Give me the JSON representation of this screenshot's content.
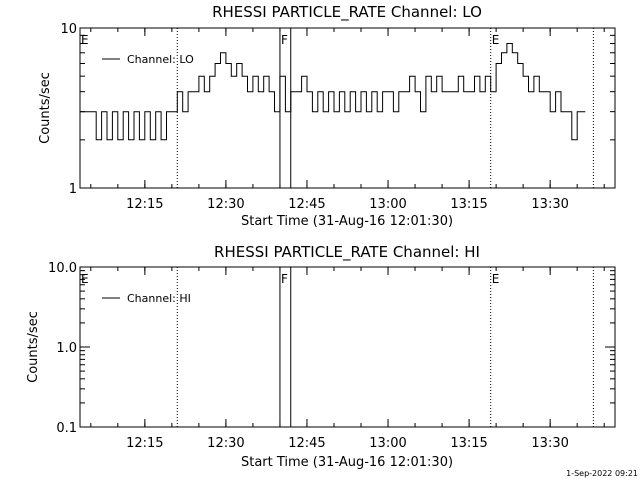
{
  "footer": "1-Sep-2022 09:21",
  "chart_data": [
    {
      "type": "line",
      "title": "RHESSI PARTICLE_RATE Channel: LO",
      "xlabel": "Start Time (31-Aug-16 12:01:30)",
      "ylabel": "Counts/sec",
      "yscale": "log",
      "ylim": [
        1,
        10
      ],
      "yticks": [
        1,
        10
      ],
      "ytick_labels": [
        "1",
        "10"
      ],
      "xlim": [
        "12:03:00",
        "13:42:00"
      ],
      "xticks": [
        "12:15",
        "12:30",
        "12:45",
        "13:00",
        "13:15",
        "13:30"
      ],
      "legend": {
        "text": "Channel: LO",
        "placement": "top-left"
      },
      "markers": [
        {
          "label": "E",
          "time": "12:03:00",
          "style": "none"
        },
        {
          "label": "",
          "time": "12:21:00",
          "style": "dotted"
        },
        {
          "label": "F",
          "time": "12:40:00",
          "style": "solid"
        },
        {
          "label": "",
          "time": "12:42:00",
          "style": "solid"
        },
        {
          "label": "E",
          "time": "13:19:00",
          "style": "dotted"
        },
        {
          "label": "",
          "time": "13:38:00",
          "style": "dotted"
        }
      ],
      "series": [
        {
          "name": "Channel: LO",
          "x": [
            "12:03:00",
            "12:05:00",
            "12:06:00",
            "12:07:00",
            "12:08:00",
            "12:09:00",
            "12:10:00",
            "12:11:00",
            "12:12:00",
            "12:13:00",
            "12:14:00",
            "12:15:00",
            "12:16:00",
            "12:17:00",
            "12:18:00",
            "12:19:00",
            "12:20:00",
            "12:21:00",
            "12:22:00",
            "12:23:00",
            "12:24:00",
            "12:25:00",
            "12:26:00",
            "12:27:00",
            "12:28:00",
            "12:29:00",
            "12:30:00",
            "12:31:00",
            "12:32:00",
            "12:33:00",
            "12:34:00",
            "12:35:00",
            "12:36:00",
            "12:37:00",
            "12:38:00",
            "12:39:00",
            "12:40:00",
            "12:41:00",
            "12:42:00",
            "12:43:00",
            "12:44:00",
            "12:45:00",
            "12:46:00",
            "12:47:00",
            "12:48:00",
            "12:49:00",
            "12:50:00",
            "12:51:00",
            "12:52:00",
            "12:53:00",
            "12:54:00",
            "12:55:00",
            "12:56:00",
            "12:57:00",
            "12:58:00",
            "12:59:00",
            "13:00:00",
            "13:01:00",
            "13:02:00",
            "13:03:00",
            "13:04:00",
            "13:05:00",
            "13:06:00",
            "13:07:00",
            "13:08:00",
            "13:09:00",
            "13:10:00",
            "13:11:00",
            "13:12:00",
            "13:13:00",
            "13:14:00",
            "13:15:00",
            "13:16:00",
            "13:17:00",
            "13:18:00",
            "13:19:00",
            "13:20:00",
            "13:21:00",
            "13:22:00",
            "13:23:00",
            "13:24:00",
            "13:25:00",
            "13:26:00",
            "13:27:00",
            "13:28:00",
            "13:29:00",
            "13:30:00",
            "13:31:00",
            "13:32:00",
            "13:33:00",
            "13:34:00",
            "13:35:00"
          ],
          "values": [
            3,
            3,
            2,
            3,
            2,
            3,
            2,
            3,
            2,
            3,
            2,
            3,
            2,
            3,
            2,
            3,
            3,
            4,
            3,
            4,
            4,
            5,
            4,
            5,
            6,
            7,
            6,
            5,
            6,
            5,
            4,
            5,
            4,
            5,
            4,
            3,
            5,
            3,
            4,
            4,
            5,
            4,
            3,
            4,
            3,
            4,
            3,
            4,
            3,
            4,
            3,
            4,
            3,
            4,
            3,
            4,
            4,
            3,
            4,
            4,
            5,
            4,
            3,
            5,
            4,
            5,
            4,
            4,
            4,
            5,
            4,
            4,
            5,
            4,
            5,
            4,
            6,
            7,
            8,
            7,
            6,
            5,
            4,
            5,
            4,
            4,
            3,
            4,
            3,
            3,
            2,
            3
          ]
        }
      ]
    },
    {
      "type": "line",
      "title": "RHESSI PARTICLE_RATE Channel: HI",
      "xlabel": "Start Time (31-Aug-16 12:01:30)",
      "ylabel": "Counts/sec",
      "yscale": "log",
      "ylim": [
        0.1,
        10
      ],
      "yticks": [
        0.1,
        1,
        10
      ],
      "ytick_labels": [
        "0.1",
        "1.0",
        "10.0"
      ],
      "xlim": [
        "12:03:00",
        "13:42:00"
      ],
      "xticks": [
        "12:15",
        "12:30",
        "12:45",
        "13:00",
        "13:15",
        "13:30"
      ],
      "legend": {
        "text": "Channel: HI",
        "placement": "top-left"
      },
      "markers": [
        {
          "label": "E",
          "time": "12:03:00",
          "style": "none"
        },
        {
          "label": "",
          "time": "12:21:00",
          "style": "dotted"
        },
        {
          "label": "F",
          "time": "12:40:00",
          "style": "solid"
        },
        {
          "label": "",
          "time": "12:42:00",
          "style": "solid"
        },
        {
          "label": "E",
          "time": "13:19:00",
          "style": "dotted"
        },
        {
          "label": "",
          "time": "13:38:00",
          "style": "dotted"
        }
      ],
      "series": []
    }
  ]
}
